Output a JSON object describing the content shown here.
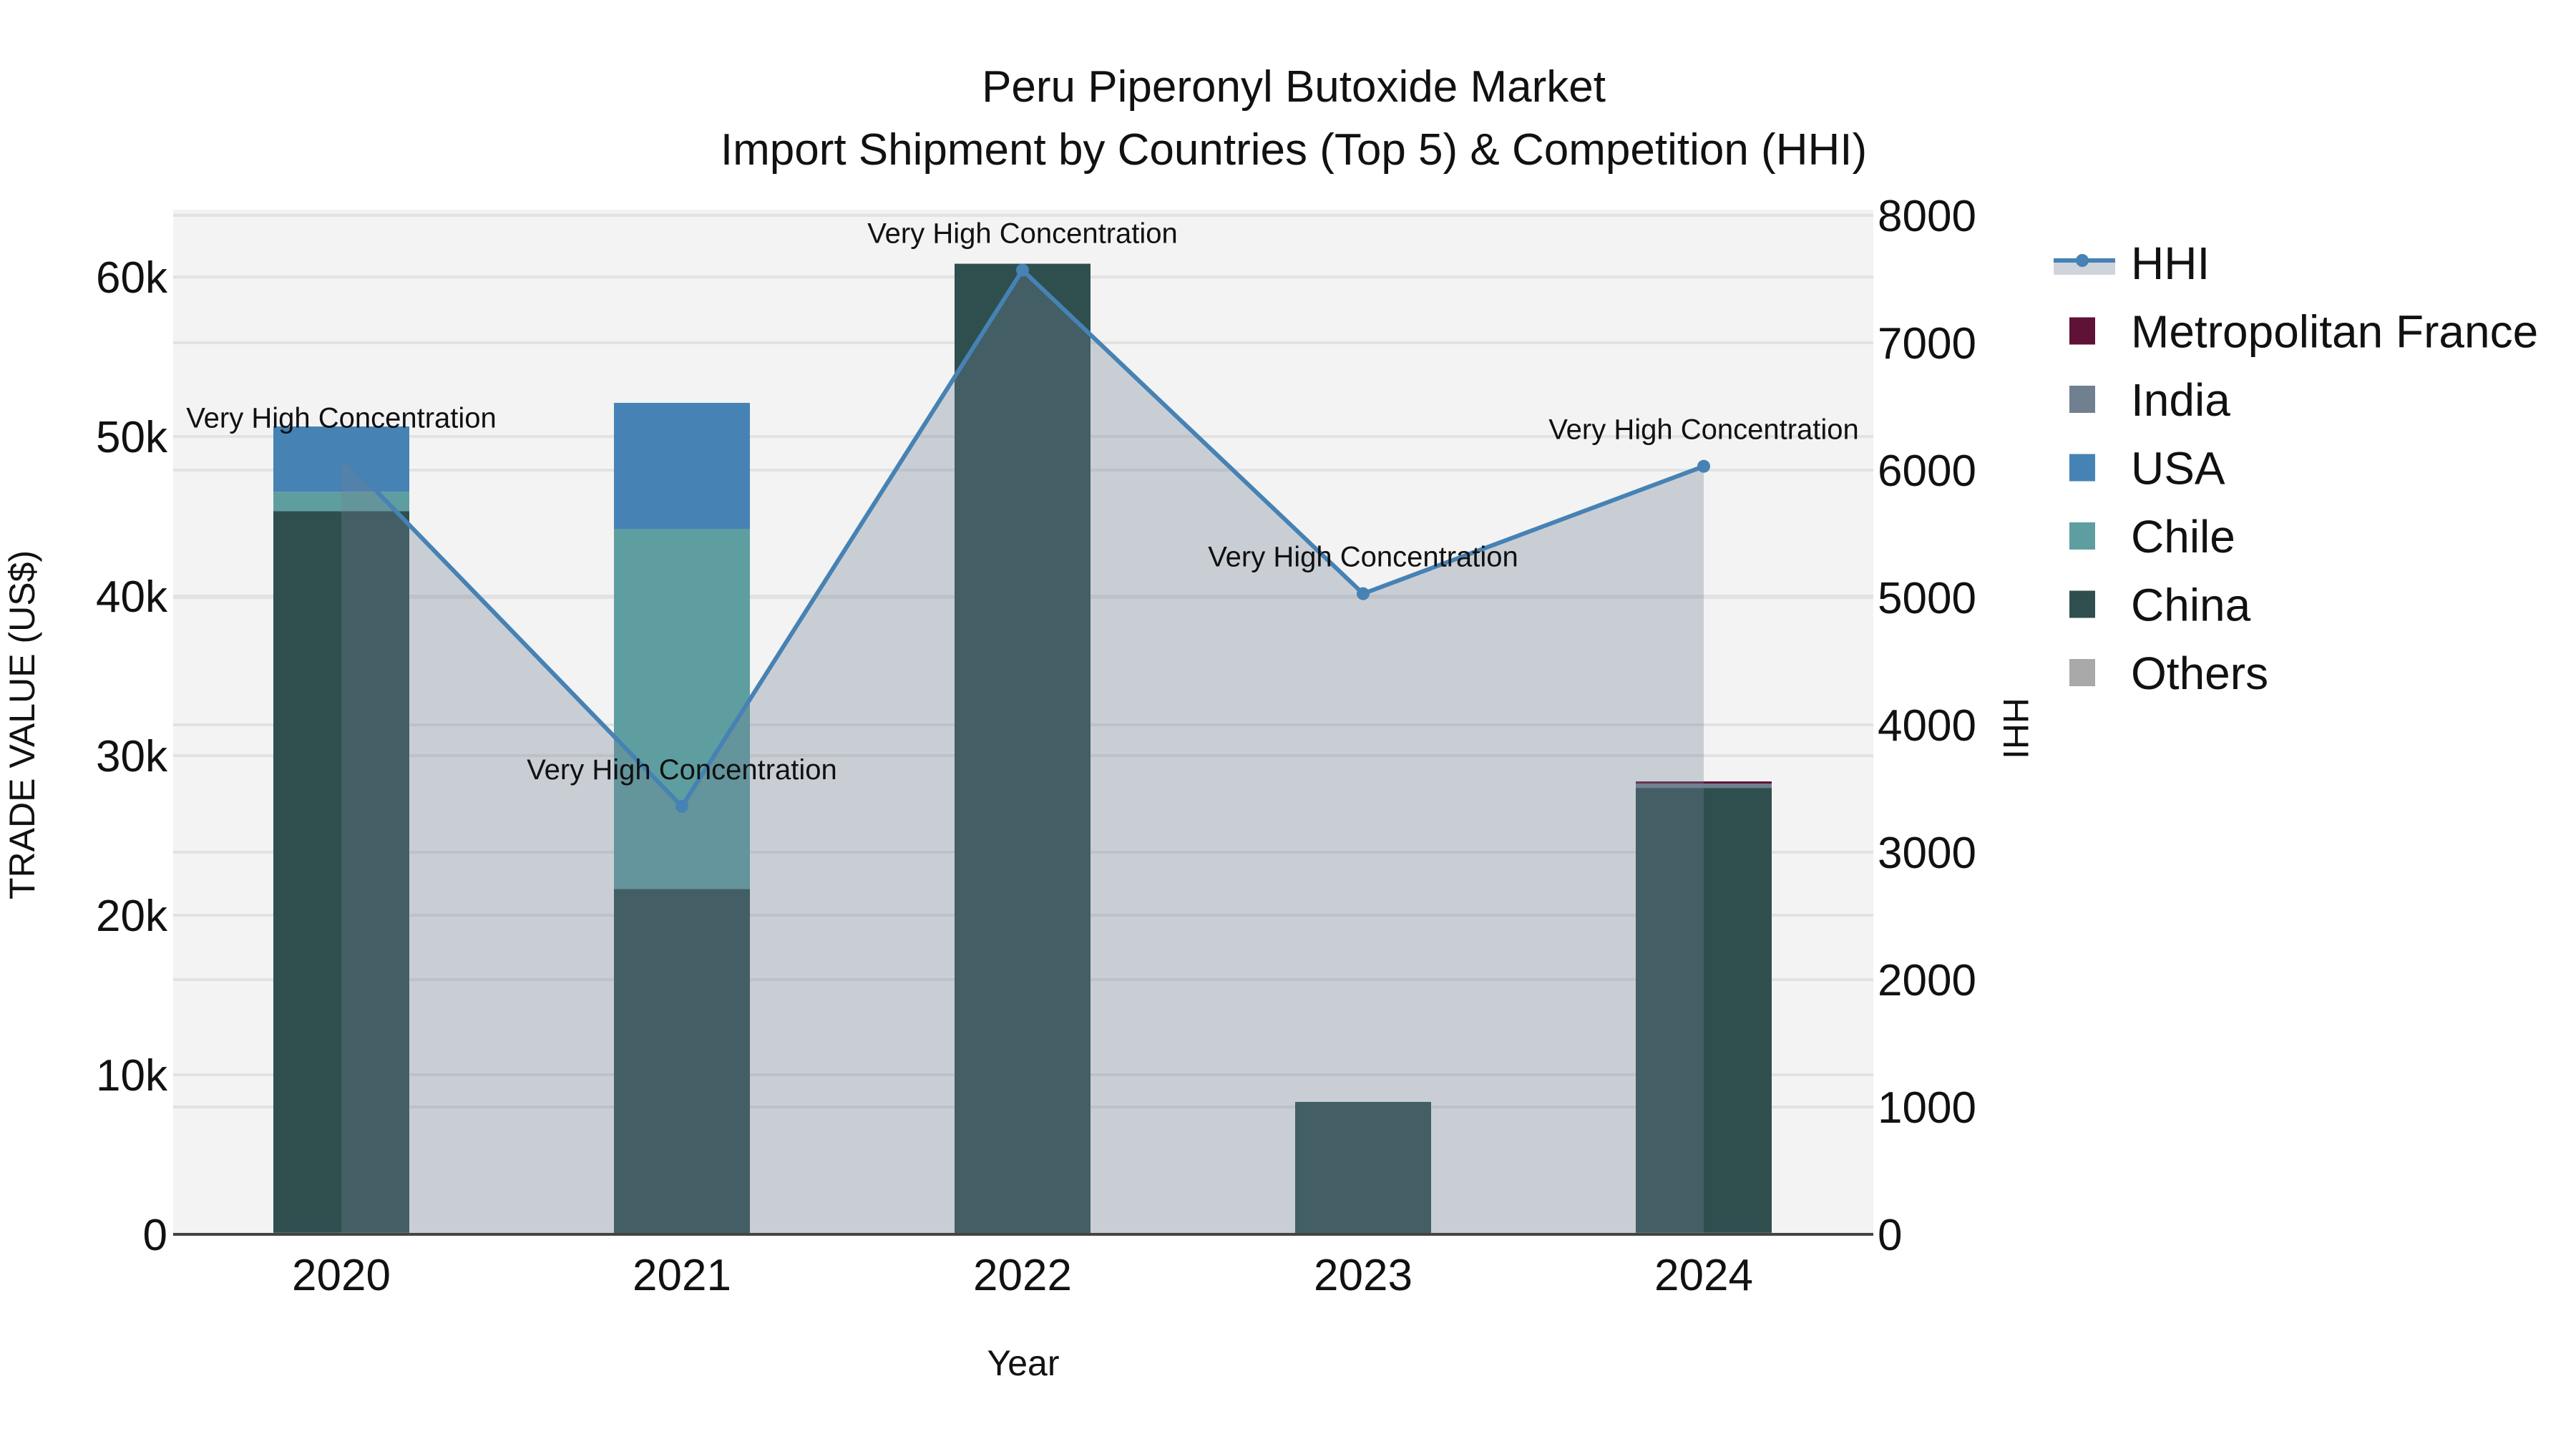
{
  "chart_data": {
    "type": "bar",
    "title": "Peru Piperonyl Butoxide Market",
    "subtitle": "Import Shipment by Countries (Top 5) & Competition (HHI)",
    "xlabel": "Year",
    "ylabel": "TRADE VALUE (US$)",
    "y2label": "HHI",
    "categories": [
      "2020",
      "2021",
      "2022",
      "2023",
      "2024"
    ],
    "stacked": true,
    "ylim": [
      0,
      63860
    ],
    "y_ticks": [
      0,
      10000,
      20000,
      30000,
      40000,
      50000,
      60000
    ],
    "y_tick_labels": [
      "0",
      "10k",
      "20k",
      "30k",
      "40k",
      "50k",
      "60k"
    ],
    "y2lim": [
      0,
      8000
    ],
    "y2_ticks": [
      0,
      1000,
      2000,
      3000,
      4000,
      5000,
      6000,
      7000,
      8000
    ],
    "y2_tick_labels": [
      "0",
      "1000",
      "2000",
      "3000",
      "4000",
      "5000",
      "6000",
      "7000",
      "8000"
    ],
    "grid": true,
    "legend_position": "right",
    "series": [
      {
        "name": "Others",
        "color": "#a9a9a9",
        "values": [
          100,
          0,
          0,
          0,
          100
        ]
      },
      {
        "name": "China",
        "color": "#2f4f4f",
        "values": [
          45230,
          21650,
          60830,
          8300,
          27880
        ]
      },
      {
        "name": "Chile",
        "color": "#5f9ea0",
        "values": [
          1210,
          22550,
          0,
          0,
          0
        ]
      },
      {
        "name": "USA",
        "color": "#4682b4",
        "values": [
          4090,
          7910,
          0,
          0,
          0
        ]
      },
      {
        "name": "India",
        "color": "#708090",
        "values": [
          0,
          0,
          0,
          0,
          270
        ]
      },
      {
        "name": "Metropolitan France",
        "color": "#5f1235",
        "values": [
          0,
          0,
          0,
          0,
          135
        ]
      }
    ],
    "hhi": {
      "name": "HHI",
      "color": "#4682b4",
      "fill_color": "rgba(112,128,150,0.32)",
      "values": [
        6120,
        3360,
        7570,
        5030,
        6030
      ],
      "annotations": [
        "Very High Concentration",
        "Very High Concentration",
        "Very High Concentration",
        "Very High Concentration",
        "Very High Concentration"
      ]
    },
    "legend": [
      "HHI",
      "Metropolitan France",
      "India",
      "USA",
      "Chile",
      "China",
      "Others"
    ]
  }
}
